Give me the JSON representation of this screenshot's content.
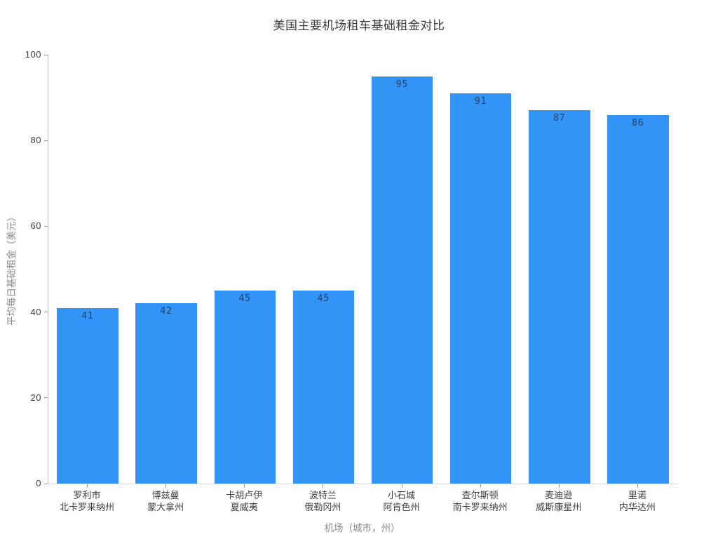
{
  "chart_data": {
    "type": "bar",
    "title": "美国主要机场租车基础租金对比",
    "xlabel": "机场（城市，州）",
    "ylabel": "平均每日基础租金（美元）",
    "categories": [
      {
        "city": "罗利市",
        "state": "北卡罗来纳州"
      },
      {
        "city": "博兹曼",
        "state": "蒙大拿州"
      },
      {
        "city": "卡胡卢伊",
        "state": "夏威夷"
      },
      {
        "city": "波特兰",
        "state": "俄勒冈州"
      },
      {
        "city": "小石城",
        "state": "阿肯色州"
      },
      {
        "city": "查尔斯顿",
        "state": "南卡罗来纳州"
      },
      {
        "city": "麦迪逊",
        "state": "威斯康星州"
      },
      {
        "city": "里诺",
        "state": "内华达州"
      }
    ],
    "values": [
      41,
      42,
      45,
      45,
      95,
      91,
      87,
      86
    ],
    "ylim": [
      0,
      100
    ],
    "yticks": [
      0,
      20,
      40,
      60,
      80,
      100
    ],
    "grid": false,
    "legend": "none",
    "bar_color": "#3194f6",
    "value_label_color": "#2a3f5f"
  }
}
